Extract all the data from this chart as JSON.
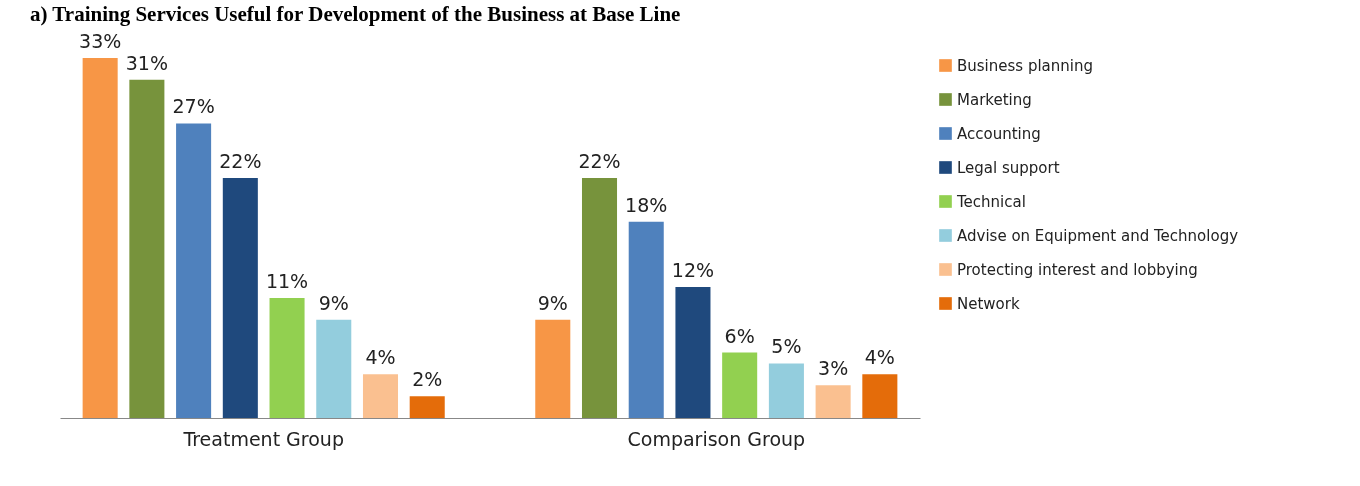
{
  "chart_data": {
    "type": "bar",
    "title": "a) Training Services Useful for Development of the Business at Base Line",
    "categories": [
      "Treatment Group",
      "Comparison Group"
    ],
    "legend": "right",
    "tick_labels": "x",
    "series": [
      {
        "name": "Business planning",
        "color": "#f79646",
        "values": [
          33,
          9
        ],
        "value_labels": [
          "33%",
          "9%"
        ]
      },
      {
        "name": "Marketing",
        "color": "#77933c",
        "values": [
          31,
          22
        ],
        "value_labels": [
          "31%",
          "22%"
        ]
      },
      {
        "name": "Accounting",
        "color": "#4f81bd",
        "values": [
          27,
          18
        ],
        "value_labels": [
          "27%",
          "18%"
        ]
      },
      {
        "name": "Legal support",
        "color": "#1f497d",
        "values": [
          22,
          12
        ],
        "value_labels": [
          "22%",
          "12%"
        ]
      },
      {
        "name": "Technical",
        "color": "#92d050",
        "values": [
          11,
          6
        ],
        "value_labels": [
          "11%",
          "6%"
        ]
      },
      {
        "name": "Advise on Equipment and Technology",
        "color": "#93cddd",
        "values": [
          9,
          5
        ],
        "value_labels": [
          "9%",
          "5%"
        ]
      },
      {
        "name": "Protecting interest and lobbying",
        "color": "#fac090",
        "values": [
          4,
          3
        ],
        "value_labels": [
          "4%",
          "3%"
        ]
      },
      {
        "name": "Network",
        "color": "#e46c0a",
        "values": [
          2,
          4
        ],
        "value_labels": [
          "2%",
          "4%"
        ]
      }
    ]
  }
}
